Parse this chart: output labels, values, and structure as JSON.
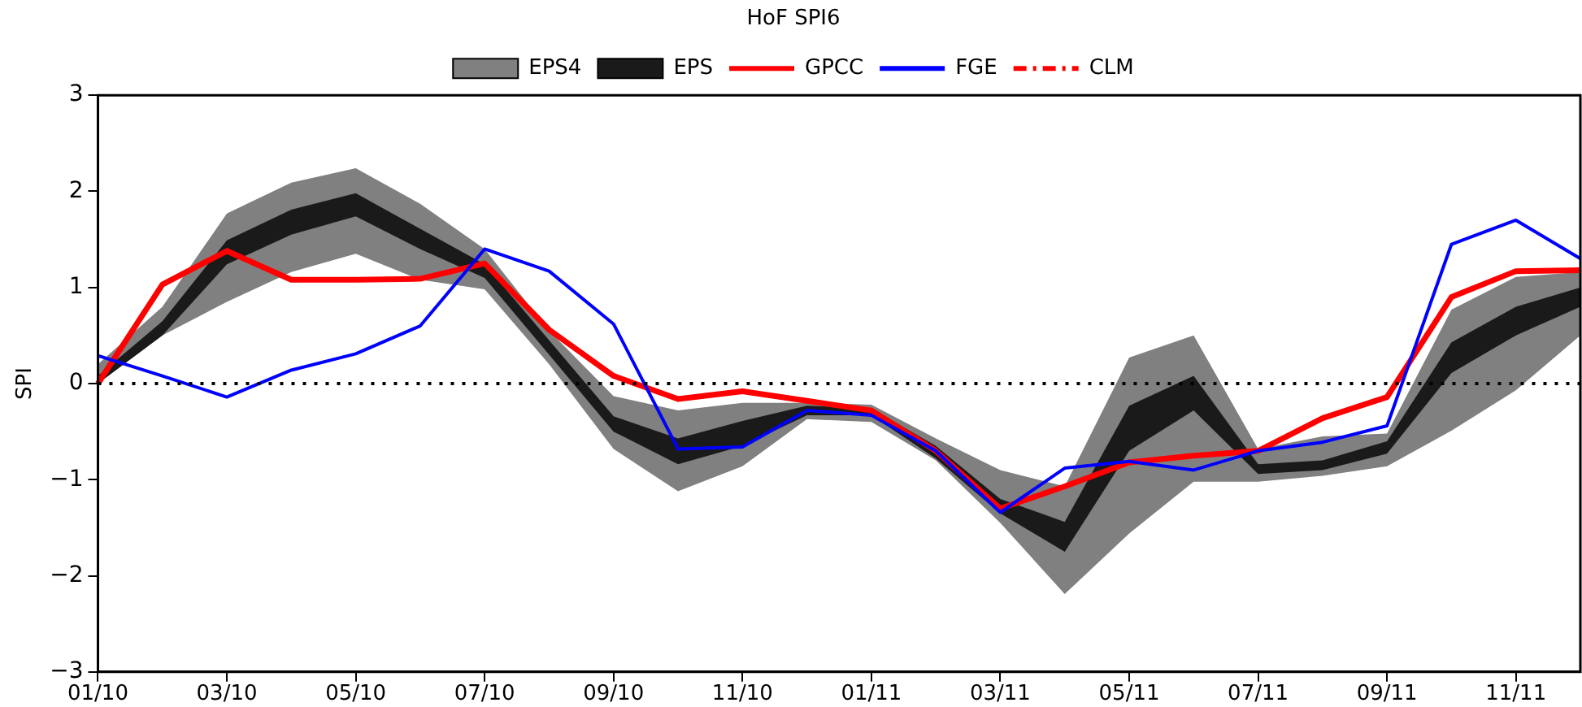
{
  "chart_data": {
    "type": "line",
    "title": "HoF SPI6",
    "ylabel": "SPI",
    "categories": [
      "01/10",
      null,
      "03/10",
      null,
      "05/10",
      null,
      "07/10",
      null,
      "09/10",
      null,
      "11/10",
      null,
      "01/11",
      null,
      "03/11",
      null,
      "05/11",
      null,
      "07/11",
      null,
      "09/11",
      null,
      "11/11",
      null
    ],
    "ylim": [
      -3,
      3
    ],
    "yticks": [
      -3,
      -2,
      -1,
      0,
      1,
      2,
      3
    ],
    "grid": false,
    "legend": "top",
    "marker": "none",
    "series": [
      {
        "name": "EPS4",
        "type": "area",
        "color": "#808080",
        "values": [
          null,
          null,
          null,
          null,
          null,
          null,
          null,
          null,
          null,
          null,
          null,
          null,
          null,
          null,
          null,
          null,
          null,
          null,
          null,
          null,
          null,
          null,
          null,
          null
        ],
        "lower": [
          0,
          0.5,
          0.85,
          1.16,
          1.35,
          1.08,
          0.98,
          0.2,
          -0.68,
          -1.12,
          -0.86,
          -0.37,
          -0.4,
          -0.8,
          -1.45,
          -2.19,
          -1.56,
          -1.02,
          -1.02,
          -0.96,
          -0.86,
          -0.49,
          -0.07,
          0.5
        ],
        "upper": [
          0.2,
          0.8,
          1.77,
          2.09,
          2.24,
          1.87,
          1.4,
          0.55,
          -0.13,
          -0.28,
          -0.2,
          -0.2,
          -0.22,
          -0.57,
          -0.9,
          -1.07,
          0.27,
          0.5,
          -0.68,
          -0.55,
          -0.52,
          0.77,
          1.11,
          1.16
        ]
      },
      {
        "name": "EPS",
        "type": "area",
        "color": "#1a1a1a",
        "values": [
          null,
          null,
          null,
          null,
          null,
          null,
          null,
          null,
          null,
          null,
          null,
          null,
          null,
          null,
          null,
          null,
          null,
          null,
          null,
          null,
          null,
          null,
          null,
          null
        ],
        "lower": [
          0,
          0.5,
          1.24,
          1.55,
          1.74,
          1.4,
          1.1,
          0.3,
          -0.5,
          -0.84,
          -0.65,
          -0.33,
          -0.33,
          -0.78,
          -1.35,
          -1.75,
          -0.7,
          -0.28,
          -0.94,
          -0.9,
          -0.73,
          0.11,
          0.5,
          0.8
        ],
        "upper": [
          0.08,
          0.65,
          1.49,
          1.81,
          1.98,
          1.61,
          1.24,
          0.45,
          -0.34,
          -0.57,
          -0.39,
          -0.23,
          -0.26,
          -0.65,
          -1.2,
          -1.44,
          -0.23,
          0.08,
          -0.84,
          -0.8,
          -0.6,
          0.43,
          0.8,
          1.0
        ]
      },
      {
        "name": "GPCC",
        "type": "line",
        "color": "#ff0000",
        "values": [
          0,
          1.03,
          1.38,
          1.08,
          1.08,
          1.09,
          1.25,
          0.56,
          0.08,
          -0.16,
          -0.08,
          -0.18,
          -0.28,
          -0.7,
          -1.3,
          -1.07,
          -0.82,
          -0.75,
          -0.7,
          -0.36,
          -0.14,
          0.9,
          1.17,
          1.18
        ]
      },
      {
        "name": "FGE",
        "type": "line",
        "color": "#0000ff",
        "values": [
          0.29,
          0.08,
          -0.14,
          0.14,
          0.31,
          0.6,
          1.4,
          1.17,
          0.62,
          -0.68,
          -0.66,
          -0.28,
          -0.33,
          -0.7,
          -1.34,
          -0.88,
          -0.81,
          -0.9,
          -0.7,
          -0.61,
          -0.44,
          1.45,
          1.7,
          1.3
        ]
      },
      {
        "name": "CLM",
        "type": "line",
        "color": "#ff0000",
        "line_style": "dashed",
        "values": [
          null,
          null,
          null,
          null,
          null,
          null,
          null,
          null,
          null,
          null,
          null,
          null,
          null,
          null,
          null,
          null,
          null,
          null,
          null,
          null,
          null,
          null,
          null,
          null
        ]
      }
    ],
    "ref_lines": [
      {
        "axis": "y",
        "value": 0,
        "color": "#000000",
        "line_style": "dotted"
      }
    ]
  }
}
